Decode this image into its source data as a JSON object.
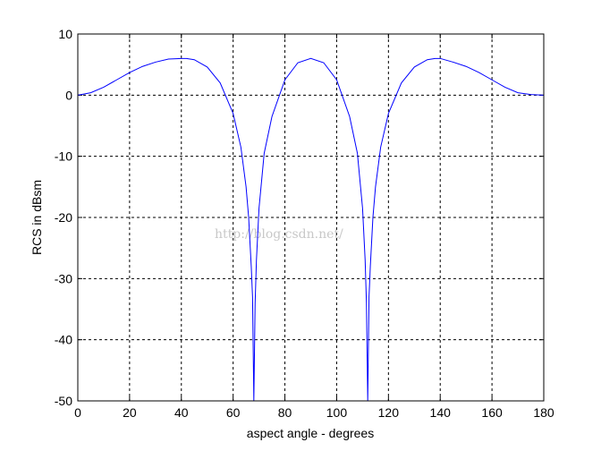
{
  "watermark": "http://blog.csdn.net/",
  "chart_data": {
    "type": "line",
    "title": "",
    "xlabel": "aspect angle - degrees",
    "ylabel": "RCS in dBsm",
    "xlim": [
      0,
      180
    ],
    "ylim": [
      -50,
      10
    ],
    "xticks": [
      0,
      20,
      40,
      60,
      80,
      100,
      120,
      140,
      160,
      180
    ],
    "yticks": [
      10,
      0,
      -10,
      -20,
      -30,
      -40,
      -50
    ],
    "grid": true,
    "grid_style": "dashed",
    "line_color": "#0000ff",
    "series": [
      {
        "x": [
          0,
          5,
          10,
          15,
          20,
          25,
          30,
          35,
          40,
          42,
          45,
          50,
          55,
          60,
          63,
          65,
          66,
          67,
          67.5,
          68,
          68.5,
          69,
          70,
          72,
          75,
          80,
          85,
          90,
          95,
          100,
          105,
          108,
          110,
          111,
          111.5,
          112,
          112.5,
          113,
          114,
          115,
          117,
          120,
          125,
          130,
          135,
          138,
          140,
          145,
          150,
          155,
          160,
          165,
          170,
          175,
          180
        ],
        "y": [
          0,
          0.4,
          1.3,
          2.5,
          3.7,
          4.7,
          5.4,
          5.9,
          6.0,
          6.0,
          5.8,
          4.6,
          2.0,
          -3.0,
          -8.5,
          -15,
          -20,
          -28,
          -33,
          -50,
          -34,
          -27,
          -18.5,
          -9.5,
          -3.5,
          2.5,
          5.3,
          6.0,
          5.3,
          2.5,
          -3.5,
          -9.5,
          -18.5,
          -27,
          -34,
          -50,
          -33,
          -28,
          -20,
          -15,
          -8.5,
          -3.0,
          2.0,
          4.6,
          5.8,
          6.0,
          6.0,
          5.4,
          4.7,
          3.7,
          2.5,
          1.3,
          0.4,
          0.1,
          0
        ]
      }
    ]
  }
}
